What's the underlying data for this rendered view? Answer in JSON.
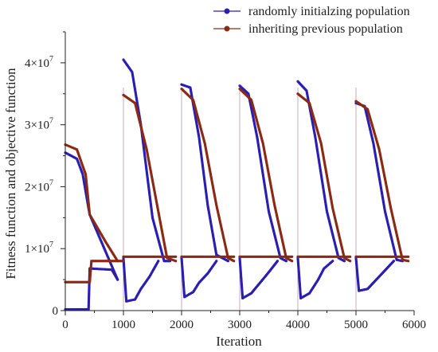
{
  "chart_data": {
    "type": "scatter",
    "title": "",
    "xlabel": "Iteration",
    "ylabel": "Fitness function and objective function",
    "xlim": [
      0,
      6000
    ],
    "ylim": [
      0,
      45000000
    ],
    "x_ticks": [
      "0",
      "1000",
      "2000",
      "3000",
      "4000",
      "5000",
      "6000"
    ],
    "y_ticks": [
      {
        "value": 0,
        "label": "0",
        "exp": ""
      },
      {
        "value": 10000000,
        "label": "1×10",
        "exp": "7"
      },
      {
        "value": 20000000,
        "label": "2×10",
        "exp": "7"
      },
      {
        "value": 30000000,
        "label": "3×10",
        "exp": "7"
      },
      {
        "value": 40000000,
        "label": "4×10",
        "exp": "7"
      }
    ],
    "grid": false,
    "legend_position": "top-right",
    "dividers_x": [
      1000,
      2000,
      3000,
      4000,
      5000
    ],
    "series": [
      {
        "name": "randomly initialzing population",
        "color": "#2a1fb0",
        "marker": "circle",
        "fitness_curves": [
          [
            [
              0,
              25500000
            ],
            [
              200,
              24500000
            ],
            [
              300,
              22000000
            ],
            [
              400,
              16500000
            ],
            [
              420,
              15500000
            ],
            [
              900,
              5000000
            ]
          ],
          [
            [
              1000,
              40500000
            ],
            [
              1150,
              38500000
            ],
            [
              1300,
              30000000
            ],
            [
              1500,
              15000000
            ],
            [
              1700,
              8000000
            ],
            [
              1800,
              8000000
            ]
          ],
          [
            [
              2000,
              36500000
            ],
            [
              2150,
              36000000
            ],
            [
              2300,
              28000000
            ],
            [
              2450,
              17000000
            ],
            [
              2600,
              9000000
            ],
            [
              2800,
              8000000
            ]
          ],
          [
            [
              3000,
              36300000
            ],
            [
              3150,
              35000000
            ],
            [
              3300,
              28000000
            ],
            [
              3500,
              16000000
            ],
            [
              3700,
              8500000
            ],
            [
              3800,
              8000000
            ]
          ],
          [
            [
              4000,
              37000000
            ],
            [
              4150,
              35500000
            ],
            [
              4300,
              28000000
            ],
            [
              4500,
              16000000
            ],
            [
              4700,
              8500000
            ],
            [
              4800,
              8000000
            ]
          ],
          [
            [
              5000,
              33500000
            ],
            [
              5150,
              33000000
            ],
            [
              5300,
              27000000
            ],
            [
              5500,
              16000000
            ],
            [
              5700,
              8200000
            ],
            [
              5800,
              8000000
            ]
          ]
        ],
        "objective_curves": [
          [
            [
              0,
              200000
            ],
            [
              400,
              200000
            ],
            [
              420,
              6800000
            ],
            [
              800,
              6600000
            ],
            [
              900,
              5000000
            ]
          ],
          [
            [
              1000,
              8500000
            ],
            [
              1050,
              1500000
            ],
            [
              1200,
              1800000
            ],
            [
              1300,
              3500000
            ],
            [
              1450,
              5500000
            ],
            [
              1600,
              8000000
            ]
          ],
          [
            [
              2000,
              8500000
            ],
            [
              2050,
              2200000
            ],
            [
              2200,
              3000000
            ],
            [
              2300,
              4500000
            ],
            [
              2450,
              6000000
            ],
            [
              2600,
              8000000
            ]
          ],
          [
            [
              3000,
              8500000
            ],
            [
              3050,
              2000000
            ],
            [
              3200,
              2800000
            ],
            [
              3350,
              4500000
            ],
            [
              3500,
              6200000
            ],
            [
              3650,
              8000000
            ]
          ],
          [
            [
              4000,
              8500000
            ],
            [
              4050,
              2000000
            ],
            [
              4200,
              2800000
            ],
            [
              4350,
              5000000
            ],
            [
              4450,
              6800000
            ],
            [
              4600,
              8000000
            ]
          ],
          [
            [
              5000,
              8500000
            ],
            [
              5050,
              3200000
            ],
            [
              5200,
              3500000
            ],
            [
              5350,
              5000000
            ],
            [
              5500,
              6500000
            ],
            [
              5650,
              8000000
            ]
          ]
        ]
      },
      {
        "name": "inheriting previous population",
        "color": "#8b2a14",
        "marker": "circle",
        "fitness_curves": [
          [
            [
              0,
              26800000
            ],
            [
              200,
              26000000
            ],
            [
              350,
              22000000
            ],
            [
              420,
              15500000
            ],
            [
              700,
              11000000
            ],
            [
              900,
              8000000
            ]
          ],
          [
            [
              1000,
              34800000
            ],
            [
              1200,
              33500000
            ],
            [
              1400,
              26000000
            ],
            [
              1600,
              16000000
            ],
            [
              1750,
              8500000
            ],
            [
              1900,
              8000000
            ]
          ],
          [
            [
              2000,
              35800000
            ],
            [
              2200,
              34000000
            ],
            [
              2400,
              27000000
            ],
            [
              2600,
              17000000
            ],
            [
              2800,
              8500000
            ],
            [
              2900,
              8000000
            ]
          ],
          [
            [
              3000,
              35800000
            ],
            [
              3200,
              34000000
            ],
            [
              3400,
              27000000
            ],
            [
              3600,
              17000000
            ],
            [
              3800,
              8500000
            ],
            [
              3900,
              8000000
            ]
          ],
          [
            [
              4000,
              35000000
            ],
            [
              4200,
              33500000
            ],
            [
              4400,
              27000000
            ],
            [
              4600,
              16500000
            ],
            [
              4800,
              8500000
            ],
            [
              4900,
              8000000
            ]
          ],
          [
            [
              5000,
              33800000
            ],
            [
              5200,
              32500000
            ],
            [
              5400,
              26000000
            ],
            [
              5600,
              16500000
            ],
            [
              5800,
              8200000
            ],
            [
              5900,
              8000000
            ]
          ]
        ],
        "objective_curves": [
          [
            [
              0,
              4600000
            ],
            [
              420,
              4600000
            ],
            [
              450,
              8000000
            ],
            [
              1000,
              8000000
            ]
          ],
          [
            [
              1000,
              8700000
            ],
            [
              1900,
              8700000
            ]
          ],
          [
            [
              2000,
              8700000
            ],
            [
              2900,
              8700000
            ]
          ],
          [
            [
              3000,
              8700000
            ],
            [
              3900,
              8700000
            ]
          ],
          [
            [
              4000,
              8700000
            ],
            [
              4900,
              8700000
            ]
          ],
          [
            [
              5000,
              8700000
            ],
            [
              5900,
              8700000
            ]
          ]
        ]
      }
    ]
  }
}
